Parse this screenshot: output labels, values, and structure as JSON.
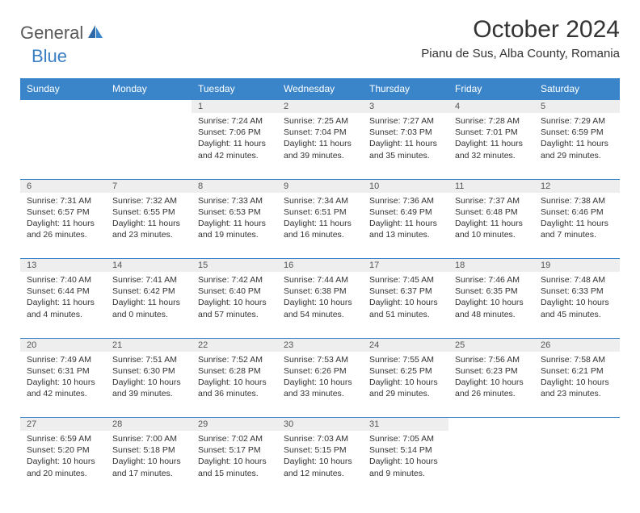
{
  "brand": {
    "general": "General",
    "blue": "Blue"
  },
  "title": "October 2024",
  "subtitle": "Pianu de Sus, Alba County, Romania",
  "weekdays": [
    "Sunday",
    "Monday",
    "Tuesday",
    "Wednesday",
    "Thursday",
    "Friday",
    "Saturday"
  ],
  "colors": {
    "header_bg": "#3a85c9",
    "header_text": "#ffffff",
    "daynum_bg": "#eeeeee",
    "rule": "#3a85c9",
    "text": "#333333",
    "logo_gray": "#5a5a5a",
    "logo_blue": "#3a7fc4"
  },
  "weeks": [
    [
      null,
      null,
      {
        "n": "1",
        "sr": "Sunrise: 7:24 AM",
        "ss": "Sunset: 7:06 PM",
        "dl": "Daylight: 11 hours and 42 minutes."
      },
      {
        "n": "2",
        "sr": "Sunrise: 7:25 AM",
        "ss": "Sunset: 7:04 PM",
        "dl": "Daylight: 11 hours and 39 minutes."
      },
      {
        "n": "3",
        "sr": "Sunrise: 7:27 AM",
        "ss": "Sunset: 7:03 PM",
        "dl": "Daylight: 11 hours and 35 minutes."
      },
      {
        "n": "4",
        "sr": "Sunrise: 7:28 AM",
        "ss": "Sunset: 7:01 PM",
        "dl": "Daylight: 11 hours and 32 minutes."
      },
      {
        "n": "5",
        "sr": "Sunrise: 7:29 AM",
        "ss": "Sunset: 6:59 PM",
        "dl": "Daylight: 11 hours and 29 minutes."
      }
    ],
    [
      {
        "n": "6",
        "sr": "Sunrise: 7:31 AM",
        "ss": "Sunset: 6:57 PM",
        "dl": "Daylight: 11 hours and 26 minutes."
      },
      {
        "n": "7",
        "sr": "Sunrise: 7:32 AM",
        "ss": "Sunset: 6:55 PM",
        "dl": "Daylight: 11 hours and 23 minutes."
      },
      {
        "n": "8",
        "sr": "Sunrise: 7:33 AM",
        "ss": "Sunset: 6:53 PM",
        "dl": "Daylight: 11 hours and 19 minutes."
      },
      {
        "n": "9",
        "sr": "Sunrise: 7:34 AM",
        "ss": "Sunset: 6:51 PM",
        "dl": "Daylight: 11 hours and 16 minutes."
      },
      {
        "n": "10",
        "sr": "Sunrise: 7:36 AM",
        "ss": "Sunset: 6:49 PM",
        "dl": "Daylight: 11 hours and 13 minutes."
      },
      {
        "n": "11",
        "sr": "Sunrise: 7:37 AM",
        "ss": "Sunset: 6:48 PM",
        "dl": "Daylight: 11 hours and 10 minutes."
      },
      {
        "n": "12",
        "sr": "Sunrise: 7:38 AM",
        "ss": "Sunset: 6:46 PM",
        "dl": "Daylight: 11 hours and 7 minutes."
      }
    ],
    [
      {
        "n": "13",
        "sr": "Sunrise: 7:40 AM",
        "ss": "Sunset: 6:44 PM",
        "dl": "Daylight: 11 hours and 4 minutes."
      },
      {
        "n": "14",
        "sr": "Sunrise: 7:41 AM",
        "ss": "Sunset: 6:42 PM",
        "dl": "Daylight: 11 hours and 0 minutes."
      },
      {
        "n": "15",
        "sr": "Sunrise: 7:42 AM",
        "ss": "Sunset: 6:40 PM",
        "dl": "Daylight: 10 hours and 57 minutes."
      },
      {
        "n": "16",
        "sr": "Sunrise: 7:44 AM",
        "ss": "Sunset: 6:38 PM",
        "dl": "Daylight: 10 hours and 54 minutes."
      },
      {
        "n": "17",
        "sr": "Sunrise: 7:45 AM",
        "ss": "Sunset: 6:37 PM",
        "dl": "Daylight: 10 hours and 51 minutes."
      },
      {
        "n": "18",
        "sr": "Sunrise: 7:46 AM",
        "ss": "Sunset: 6:35 PM",
        "dl": "Daylight: 10 hours and 48 minutes."
      },
      {
        "n": "19",
        "sr": "Sunrise: 7:48 AM",
        "ss": "Sunset: 6:33 PM",
        "dl": "Daylight: 10 hours and 45 minutes."
      }
    ],
    [
      {
        "n": "20",
        "sr": "Sunrise: 7:49 AM",
        "ss": "Sunset: 6:31 PM",
        "dl": "Daylight: 10 hours and 42 minutes."
      },
      {
        "n": "21",
        "sr": "Sunrise: 7:51 AM",
        "ss": "Sunset: 6:30 PM",
        "dl": "Daylight: 10 hours and 39 minutes."
      },
      {
        "n": "22",
        "sr": "Sunrise: 7:52 AM",
        "ss": "Sunset: 6:28 PM",
        "dl": "Daylight: 10 hours and 36 minutes."
      },
      {
        "n": "23",
        "sr": "Sunrise: 7:53 AM",
        "ss": "Sunset: 6:26 PM",
        "dl": "Daylight: 10 hours and 33 minutes."
      },
      {
        "n": "24",
        "sr": "Sunrise: 7:55 AM",
        "ss": "Sunset: 6:25 PM",
        "dl": "Daylight: 10 hours and 29 minutes."
      },
      {
        "n": "25",
        "sr": "Sunrise: 7:56 AM",
        "ss": "Sunset: 6:23 PM",
        "dl": "Daylight: 10 hours and 26 minutes."
      },
      {
        "n": "26",
        "sr": "Sunrise: 7:58 AM",
        "ss": "Sunset: 6:21 PM",
        "dl": "Daylight: 10 hours and 23 minutes."
      }
    ],
    [
      {
        "n": "27",
        "sr": "Sunrise: 6:59 AM",
        "ss": "Sunset: 5:20 PM",
        "dl": "Daylight: 10 hours and 20 minutes."
      },
      {
        "n": "28",
        "sr": "Sunrise: 7:00 AM",
        "ss": "Sunset: 5:18 PM",
        "dl": "Daylight: 10 hours and 17 minutes."
      },
      {
        "n": "29",
        "sr": "Sunrise: 7:02 AM",
        "ss": "Sunset: 5:17 PM",
        "dl": "Daylight: 10 hours and 15 minutes."
      },
      {
        "n": "30",
        "sr": "Sunrise: 7:03 AM",
        "ss": "Sunset: 5:15 PM",
        "dl": "Daylight: 10 hours and 12 minutes."
      },
      {
        "n": "31",
        "sr": "Sunrise: 7:05 AM",
        "ss": "Sunset: 5:14 PM",
        "dl": "Daylight: 10 hours and 9 minutes."
      },
      null,
      null
    ]
  ]
}
